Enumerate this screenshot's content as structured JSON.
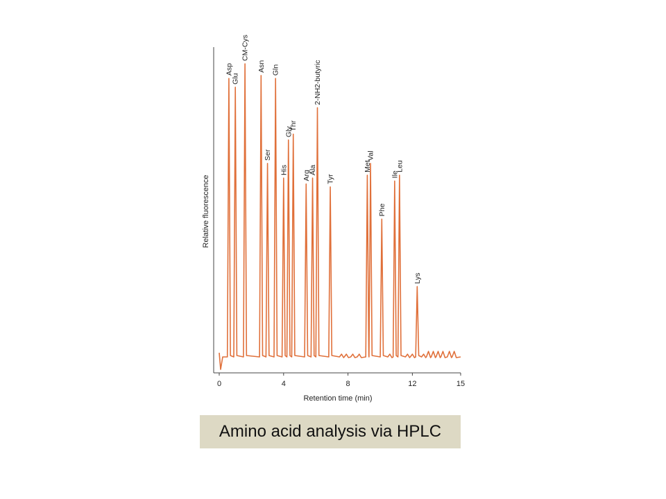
{
  "caption": "Amino acid analysis via HPLC",
  "colors": {
    "trace": "#e0703a",
    "axis": "#444444",
    "caption_bg": "#ddd9c4"
  },
  "chart_data": {
    "type": "line",
    "title": "",
    "xlabel": "Retention time (min)",
    "ylabel": "Relative fluorescence",
    "xlim": [
      0,
      15
    ],
    "ylim": [
      0,
      100
    ],
    "xticks": [
      0,
      4,
      8,
      12,
      15
    ],
    "grid": false,
    "peaks": [
      {
        "name": "Asp",
        "x": 0.6,
        "y": 95
      },
      {
        "name": "Glu",
        "x": 1.0,
        "y": 92
      },
      {
        "name": "CM-Cys",
        "x": 1.6,
        "y": 100
      },
      {
        "name": "Asn",
        "x": 2.6,
        "y": 96
      },
      {
        "name": "Ser",
        "x": 3.0,
        "y": 66
      },
      {
        "name": "Gln",
        "x": 3.5,
        "y": 95
      },
      {
        "name": "His",
        "x": 4.0,
        "y": 61
      },
      {
        "name": "Gly",
        "x": 4.3,
        "y": 74
      },
      {
        "name": "Thr",
        "x": 4.6,
        "y": 76
      },
      {
        "name": "Arg",
        "x": 5.4,
        "y": 59
      },
      {
        "name": "Ala",
        "x": 5.8,
        "y": 61
      },
      {
        "name": "2-NH2-butyric",
        "x": 6.1,
        "y": 85
      },
      {
        "name": "Tyr",
        "x": 6.9,
        "y": 58
      },
      {
        "name": "Met",
        "x": 9.2,
        "y": 62
      },
      {
        "name": "Val",
        "x": 9.4,
        "y": 66
      },
      {
        "name": "Phe",
        "x": 10.1,
        "y": 47
      },
      {
        "name": "Ile",
        "x": 10.9,
        "y": 60
      },
      {
        "name": "Leu",
        "x": 11.2,
        "y": 62
      },
      {
        "name": "Lys",
        "x": 12.3,
        "y": 24
      }
    ]
  }
}
